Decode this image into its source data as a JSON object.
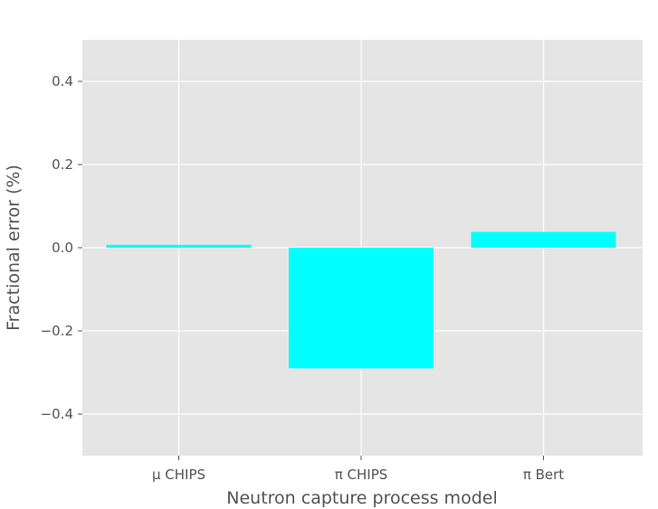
{
  "chart_data": {
    "type": "bar",
    "title": "",
    "xlabel": "Neutron capture process model",
    "ylabel": "Fractional error (%)",
    "categories": [
      "μ CHIPS",
      "π CHIPS",
      "π Bert"
    ],
    "values": [
      0.007,
      -0.29,
      0.038
    ],
    "ylim": [
      -0.5,
      0.5
    ],
    "yticks": [
      -0.4,
      -0.2,
      0.0,
      0.2,
      0.4
    ],
    "ytick_labels": [
      "−0.4",
      "−0.2",
      "0.0",
      "0.2",
      "0.4"
    ],
    "grid": true,
    "style": "ggplot",
    "colors": {
      "bar": "#00ffff",
      "background": "#e5e5e5",
      "grid": "#ffffff",
      "text": "#555555"
    }
  }
}
